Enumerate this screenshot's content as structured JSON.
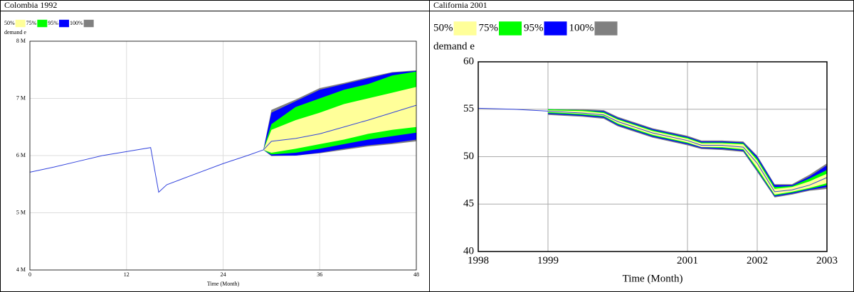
{
  "chart_data": [
    {
      "type": "sensitivity",
      "title": "Colombia 1992",
      "y_label": "demand e",
      "x_label": "Time (Month)",
      "x": [
        0,
        3,
        6,
        9,
        12,
        15,
        16,
        17,
        20,
        24,
        27,
        29,
        30,
        33,
        36,
        39,
        42,
        45,
        48
      ],
      "values": [
        5.71,
        5.8,
        5.9,
        6.0,
        6.07,
        6.14,
        5.36,
        5.49,
        5.65,
        5.86,
        6.0,
        6.1,
        6.25,
        6.3,
        6.38,
        6.5,
        6.62,
        6.75,
        6.88
      ],
      "line_color": "#3344dd",
      "series": [
        {
          "name": "50%",
          "color": "#ffff99",
          "low": [
            null,
            null,
            null,
            null,
            null,
            null,
            null,
            null,
            null,
            null,
            null,
            6.1,
            6.05,
            6.12,
            6.2,
            6.28,
            6.38,
            6.45,
            6.5
          ],
          "high": [
            null,
            null,
            null,
            null,
            null,
            null,
            null,
            null,
            null,
            null,
            null,
            6.1,
            6.45,
            6.62,
            6.75,
            6.9,
            7.0,
            7.1,
            7.2
          ]
        },
        {
          "name": "75%",
          "color": "#00ff00",
          "low": [
            null,
            null,
            null,
            null,
            null,
            null,
            null,
            null,
            null,
            null,
            null,
            6.1,
            6.02,
            6.05,
            6.12,
            6.2,
            6.28,
            6.34,
            6.4
          ],
          "high": [
            null,
            null,
            null,
            null,
            null,
            null,
            null,
            null,
            null,
            null,
            null,
            6.1,
            6.55,
            6.85,
            7.0,
            7.15,
            7.25,
            7.4,
            7.47
          ]
        },
        {
          "name": "95%",
          "color": "#0000ff",
          "low": [
            null,
            null,
            null,
            null,
            null,
            null,
            null,
            null,
            null,
            null,
            null,
            6.1,
            6.0,
            6.0,
            6.05,
            6.12,
            6.18,
            6.22,
            6.28
          ],
          "high": [
            null,
            null,
            null,
            null,
            null,
            null,
            null,
            null,
            null,
            null,
            null,
            6.1,
            6.75,
            6.95,
            7.15,
            7.25,
            7.35,
            7.45,
            7.48
          ]
        },
        {
          "name": "100%",
          "color": "#808080",
          "low": [
            null,
            null,
            null,
            null,
            null,
            null,
            null,
            null,
            null,
            null,
            null,
            6.1,
            5.99,
            6.0,
            6.04,
            6.1,
            6.16,
            6.2,
            6.25
          ],
          "high": [
            null,
            null,
            null,
            null,
            null,
            null,
            null,
            null,
            null,
            null,
            null,
            6.1,
            6.8,
            6.98,
            7.18,
            7.27,
            7.37,
            7.46,
            7.49
          ]
        }
      ],
      "xlim": [
        0,
        48
      ],
      "xticks": [
        0,
        12,
        24,
        36,
        48
      ],
      "ylim": [
        4,
        8
      ],
      "yticks": [
        {
          "value": 4,
          "label": "4 M"
        },
        {
          "value": 5,
          "label": "5 M"
        },
        {
          "value": 6,
          "label": "6 M"
        },
        {
          "value": 7,
          "label": "7 M"
        },
        {
          "value": 8,
          "label": "8 M"
        }
      ],
      "grid": true
    },
    {
      "type": "sensitivity",
      "title": "California 2001",
      "y_label": "demand e",
      "x_label": "Time (Month)",
      "x": [
        1998,
        1998.5,
        1999,
        1999.5,
        1999.8,
        2000,
        2000.5,
        2001,
        2001.2,
        2001.5,
        2001.8,
        2002,
        2002.25,
        2002.5,
        2002.75,
        2003
      ],
      "values": [
        55.1,
        55.0,
        54.8,
        54.6,
        54.4,
        53.7,
        52.5,
        51.7,
        51.2,
        51.2,
        51.0,
        49.3,
        46.3,
        46.5,
        47.0,
        47.8
      ],
      "line_color": "#3344dd",
      "series": [
        {
          "name": "50%",
          "color": "#ffff99",
          "low": [
            null,
            null,
            54.7,
            54.5,
            54.3,
            53.5,
            52.3,
            51.5,
            51.0,
            51.0,
            50.8,
            48.8,
            46.0,
            46.3,
            46.7,
            47.2
          ],
          "high": [
            null,
            null,
            54.9,
            54.8,
            54.6,
            53.9,
            52.7,
            51.9,
            51.4,
            51.4,
            51.3,
            49.6,
            46.6,
            46.8,
            47.4,
            48.2
          ]
        },
        {
          "name": "75%",
          "color": "#00ff00",
          "low": [
            null,
            null,
            54.6,
            54.4,
            54.2,
            53.4,
            52.2,
            51.4,
            51.0,
            50.9,
            50.7,
            48.6,
            45.9,
            46.2,
            46.6,
            47.0
          ],
          "high": [
            null,
            null,
            55.0,
            54.9,
            54.7,
            54.0,
            52.8,
            52.0,
            51.5,
            51.5,
            51.4,
            49.8,
            46.8,
            46.9,
            47.7,
            48.6
          ]
        },
        {
          "name": "95%",
          "color": "#0000ff",
          "low": [
            null,
            null,
            54.5,
            54.3,
            54.1,
            53.3,
            52.1,
            51.3,
            50.9,
            50.8,
            50.6,
            48.5,
            45.8,
            46.1,
            46.5,
            46.8
          ],
          "high": [
            null,
            null,
            55.0,
            54.9,
            54.8,
            54.1,
            52.9,
            52.1,
            51.6,
            51.6,
            51.5,
            50.0,
            47.0,
            47.0,
            47.9,
            49.1
          ]
        },
        {
          "name": "100%",
          "color": "#808080",
          "low": [
            null,
            null,
            54.4,
            54.2,
            54.0,
            53.2,
            52.0,
            51.2,
            50.8,
            50.7,
            50.5,
            48.4,
            45.7,
            46.0,
            46.4,
            46.6
          ],
          "high": [
            null,
            null,
            55.0,
            55.0,
            54.9,
            54.2,
            53.0,
            52.2,
            51.7,
            51.7,
            51.6,
            50.1,
            47.1,
            47.1,
            48.1,
            49.3
          ]
        }
      ],
      "xlim": [
        1998,
        2003
      ],
      "xticks": [
        1998,
        1999,
        2001,
        2002,
        2003
      ],
      "ylim": [
        40,
        60
      ],
      "yticks": [
        40,
        45,
        50,
        55,
        60
      ],
      "grid": true
    }
  ]
}
